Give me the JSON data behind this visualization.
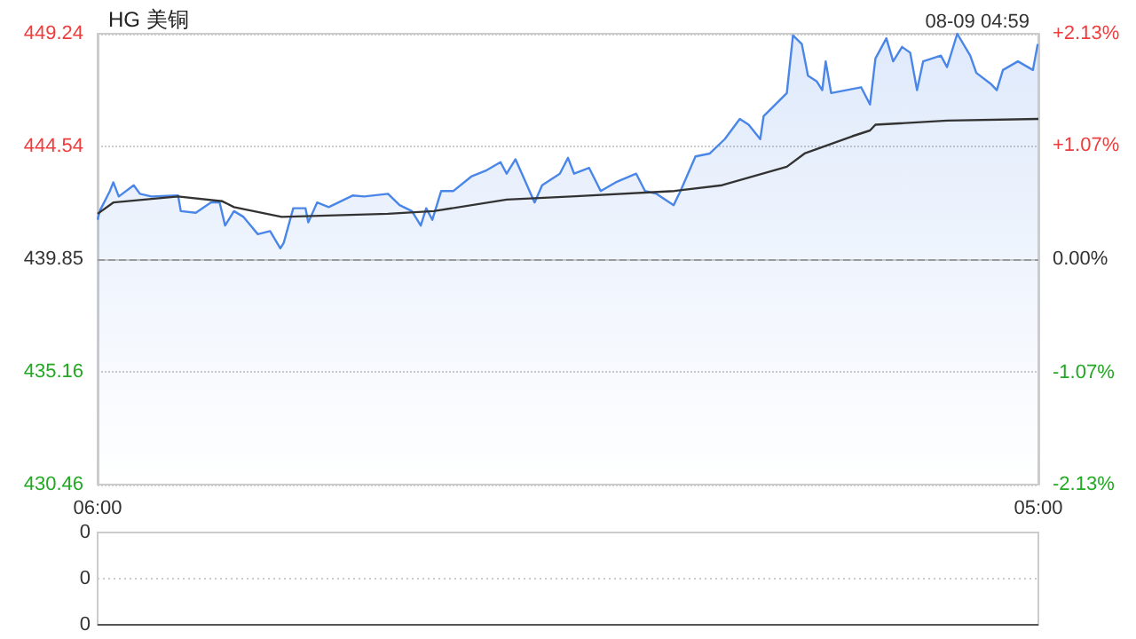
{
  "chart_data": [
    {
      "type": "line",
      "title": "HG 美铜",
      "annotations": [
        "08-09 04:59"
      ],
      "xlim": [
        "--08-08T06:00",
        "--08-09T05:00"
      ],
      "xticks": [
        {
          "value": "--08-08T06:00",
          "label": "06:00"
        },
        {
          "value": "--08-09T05:00",
          "label": "05:00"
        }
      ],
      "ylim": [
        430.46,
        449.24
      ],
      "yticks": [
        430.46,
        435.16,
        439.85,
        444.54,
        449.24
      ],
      "y2lim": [
        -2.13,
        2.13
      ],
      "y2ticks": [
        {
          "value": -2.13,
          "label": "-2.13%"
        },
        {
          "value": -1.07,
          "label": "-1.07%"
        },
        {
          "value": 0,
          "label": "0.00%"
        },
        {
          "value": 1.07,
          "label": "+1.07%"
        },
        {
          "value": 2.13,
          "label": "+2.13%"
        }
      ],
      "grid": "y",
      "marker": "none",
      "ref_lines": [
        {
          "axis": "y",
          "value": 439.85,
          "color": "#999999",
          "line_style": "dashed"
        }
      ],
      "series": [
        {
          "type": "area",
          "color": "#4a86e8",
          "x": [
            "--08-08T06:00",
            "--08-08T06:03",
            "--08-08T06:18",
            "--08-08T06:23",
            "--08-08T06:31",
            "--08-08T06:53",
            "--08-08T07:02",
            "--08-08T07:19",
            "--08-08T07:58",
            "--08-08T08:02",
            "--08-08T08:24",
            "--08-08T08:46",
            "--08-08T08:59",
            "--08-08T09:07",
            "--08-08T09:20",
            "--08-08T09:34",
            "--08-08T09:55",
            "--08-08T10:13",
            "--08-08T10:28",
            "--08-08T10:33",
            "--08-08T10:47",
            "--08-08T11:05",
            "--08-08T11:09",
            "--08-08T11:22",
            "--08-08T11:39",
            "--08-08T12:14",
            "--08-08T12:31",
            "--08-08T13:06",
            "--08-08T13:23",
            "--08-08T13:41",
            "--08-08T13:54",
            "--08-08T14:02",
            "--08-08T14:11",
            "--08-08T14:24",
            "--08-08T14:42",
            "--08-08T15:08",
            "--08-08T15:29",
            "--08-08T15:51",
            "--08-08T16:00",
            "--08-08T16:13",
            "--08-08T16:26",
            "--08-08T16:41",
            "--08-08T16:52",
            "--08-08T17:18",
            "--08-08T17:30",
            "--08-08T17:39",
            "--08-08T18:01",
            "--08-08T18:18",
            "--08-08T18:40",
            "--08-08T19:10",
            "--08-08T19:23",
            "--08-08T19:40",
            "--08-08T20:05",
            "--08-08T20:15",
            "--08-08T20:37",
            "--08-08T20:58",
            "--08-08T21:20",
            "--08-08T21:42",
            "--08-08T21:55",
            "--08-08T22:12",
            "--08-08T22:17",
            "--08-08T22:34",
            "--08-08T22:51",
            "--08-08T23:00",
            "--08-08T23:13",
            "--08-08T23:22",
            "--08-08T23:35",
            "--08-08T23:43",
            "--08-08T23:48",
            "--08-08T23:56",
            "--08-09T00:18",
            "--08-09T00:40",
            "--08-09T00:53",
            "--08-09T01:01",
            "--08-09T01:17",
            "--08-09T01:27",
            "--08-09T01:40",
            "--08-09T01:52",
            "--08-09T02:02",
            "--08-09T02:11",
            "--08-09T02:37",
            "--08-09T02:46",
            "--08-09T03:01",
            "--08-09T03:20",
            "--08-09T03:29",
            "--08-09T03:51",
            "--08-09T03:59",
            "--08-09T04:08",
            "--08-09T04:30",
            "--08-09T04:52",
            "--08-09T04:59"
          ],
          "values": [
            441.49,
            441.85,
            442.69,
            443.05,
            442.46,
            442.93,
            442.57,
            442.46,
            442.5,
            441.85,
            441.78,
            442.21,
            442.21,
            441.25,
            441.85,
            441.61,
            440.89,
            441.02,
            440.3,
            440.53,
            441.97,
            441.97,
            441.38,
            442.21,
            442.02,
            442.5,
            442.46,
            442.57,
            442.1,
            441.85,
            441.25,
            441.97,
            441.49,
            442.69,
            442.69,
            443.29,
            443.53,
            443.89,
            443.41,
            444.01,
            443.18,
            442.21,
            442.93,
            443.41,
            444.07,
            443.41,
            443.65,
            442.69,
            443.05,
            443.41,
            442.69,
            442.57,
            442.1,
            442.69,
            444.13,
            444.25,
            444.85,
            445.69,
            445.45,
            444.85,
            445.81,
            446.29,
            446.77,
            449.17,
            448.81,
            447.49,
            447.25,
            446.89,
            448.09,
            446.77,
            446.89,
            447.01,
            446.29,
            448.21,
            449.05,
            448.09,
            448.69,
            448.45,
            446.89,
            448.09,
            448.33,
            447.85,
            449.24,
            448.33,
            447.61,
            447.13,
            446.89,
            447.73,
            448.09,
            447.73,
            448.81
          ]
        },
        {
          "type": "line",
          "color": "#333333",
          "x": [
            "--08-08T06:00",
            "--08-08T06:23",
            "--08-08T07:58",
            "--08-08T09:03",
            "--08-08T09:20",
            "--08-08T10:30",
            "--08-08T13:06",
            "--08-08T14:13",
            "--08-08T16:00",
            "--08-08T17:35",
            "--08-08T20:06",
            "--08-08T21:16",
            "--08-08T22:51",
            "--08-08T23:17",
            "--08-09T00:27",
            "--08-09T00:53",
            "--08-09T01:01",
            "--08-09T02:46",
            "--08-09T05:00"
          ],
          "values": [
            441.74,
            442.21,
            442.46,
            442.26,
            442.02,
            441.61,
            441.74,
            441.85,
            442.33,
            442.46,
            442.69,
            442.93,
            443.7,
            444.25,
            444.97,
            445.21,
            445.45,
            445.62,
            445.69
          ]
        }
      ]
    },
    {
      "type": "other",
      "annotations": [
        "0",
        "0",
        "0"
      ]
    }
  ]
}
